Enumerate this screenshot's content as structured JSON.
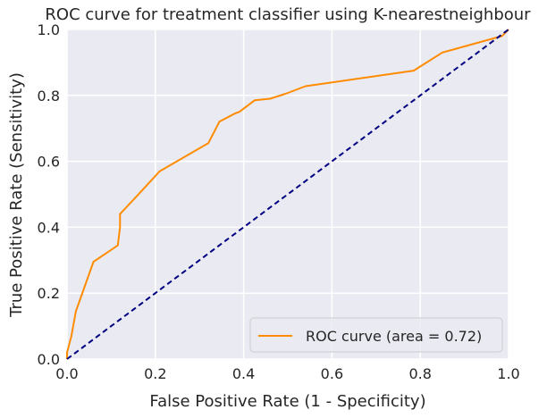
{
  "chart_data": {
    "type": "line",
    "title": "ROC curve for treatment classifier using K-nearestneighbour",
    "xlabel": "False Positive Rate (1 - Specificity)",
    "ylabel": "True Positive Rate (Sensitivity)",
    "xlim": [
      0.0,
      1.0
    ],
    "ylim": [
      0.0,
      1.0
    ],
    "xticks": [
      "0.0",
      "0.2",
      "0.4",
      "0.6",
      "0.8",
      "1.0"
    ],
    "yticks": [
      "0.0",
      "0.2",
      "0.4",
      "0.6",
      "0.8",
      "1.0"
    ],
    "grid": true,
    "legend_position": "lower-right",
    "series": [
      {
        "name": "ROC curve (area = 0.72)",
        "color": "#ff8c00",
        "line_style": "solid",
        "points": [
          [
            0.0,
            0.0
          ],
          [
            0.0,
            0.02
          ],
          [
            0.01,
            0.07
          ],
          [
            0.02,
            0.145
          ],
          [
            0.06,
            0.295
          ],
          [
            0.115,
            0.345
          ],
          [
            0.12,
            0.4
          ],
          [
            0.12,
            0.44
          ],
          [
            0.155,
            0.49
          ],
          [
            0.21,
            0.57
          ],
          [
            0.32,
            0.655
          ],
          [
            0.345,
            0.72
          ],
          [
            0.38,
            0.745
          ],
          [
            0.39,
            0.75
          ],
          [
            0.425,
            0.785
          ],
          [
            0.46,
            0.79
          ],
          [
            0.495,
            0.805
          ],
          [
            0.54,
            0.828
          ],
          [
            0.785,
            0.875
          ],
          [
            0.85,
            0.93
          ],
          [
            0.985,
            0.98
          ],
          [
            1.0,
            1.0
          ]
        ]
      },
      {
        "color": "#000080",
        "line_style": "dashed",
        "points": [
          [
            0.0,
            0.0
          ],
          [
            1.0,
            1.0
          ]
        ]
      }
    ]
  }
}
